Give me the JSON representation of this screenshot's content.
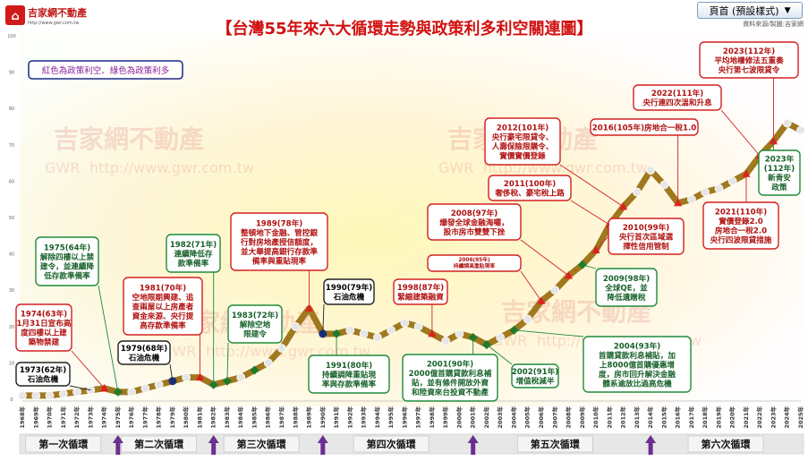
{
  "logo": {
    "name": "吉家網不動產",
    "url": "http://www.gwr.com.tw"
  },
  "title": "【台灣55年來六大循環走勢與政策利多利空關連圖】",
  "source_note": "資料來源/製圖:吉家網",
  "legend_note": "紅色為政策利空、綠色為政策利多",
  "watermark": {
    "brand": "吉家網不動產",
    "abbr": "GWR",
    "url": "http://www.gwr.com.tw"
  },
  "page_style_button": "頁首 (預設樣式)",
  "colors": {
    "line": "#a0781e",
    "red_marker": "#e02020",
    "green_marker": "#1f7a2a",
    "navy_marker": "#1c2f78",
    "point": "#e6e6e6",
    "red_border": "#d32020",
    "green_border": "#1f8a3a",
    "black_border": "#222222",
    "cycle_bar": "#e7e7e7",
    "arrow": "#6b2f8f"
  },
  "chart_data": {
    "type": "line",
    "ylim": [
      0,
      100
    ],
    "yticks": [
      0,
      10,
      20,
      30,
      40,
      50,
      60,
      70,
      80,
      90,
      100
    ],
    "x": [
      1968,
      1969,
      1970,
      1971,
      1972,
      1973,
      1974,
      1975,
      1976,
      1977,
      1978,
      1979,
      1980,
      1981,
      1982,
      1983,
      1984,
      1985,
      1986,
      1987,
      1988,
      1989,
      1990,
      1991,
      1992,
      1993,
      1994,
      1995,
      1996,
      1997,
      1998,
      1999,
      2000,
      2001,
      2002,
      2003,
      2004,
      2005,
      2006,
      2007,
      2008,
      2009,
      2010,
      2011,
      2012,
      2013,
      2014,
      2015,
      2016,
      2017,
      2018,
      2019,
      2020,
      2021,
      2022,
      2023,
      2024,
      2025
    ],
    "x_labels": [
      "1968年",
      "1969年",
      "1970年",
      "1971年",
      "1972年",
      "1973年",
      "1974年",
      "1975年",
      "1976年",
      "1977年",
      "1978年",
      "1979年",
      "1980年",
      "1981年",
      "1982年",
      "1983年",
      "1984年",
      "1985年",
      "1986年",
      "1987年",
      "1988年",
      "1989年",
      "1990年",
      "1991年",
      "1992年",
      "1993年",
      "1994年",
      "1995年",
      "1996年",
      "1997年",
      "1998年",
      "1999年",
      "2000年",
      "2001年",
      "2002年",
      "2003年",
      "2004年",
      "2005年",
      "2006年",
      "2007年",
      "2008年",
      "2009年",
      "2010年",
      "2011年",
      "2012年",
      "2013年",
      "2014年",
      "2015年",
      "2016年",
      "2017年",
      "2018年",
      "2019年",
      "2020年",
      "2021年",
      "2022年",
      "2023年",
      "2024年",
      "2025年"
    ],
    "values": [
      1,
      1,
      1,
      1.5,
      2,
      2.5,
      3,
      2,
      2,
      3,
      4,
      5,
      6,
      6,
      4,
      5,
      6,
      8,
      10,
      14,
      20,
      25,
      18,
      18,
      19,
      18,
      17,
      19,
      21,
      20,
      18,
      16,
      18,
      17,
      15,
      17,
      19,
      22,
      27,
      30,
      34,
      37,
      41,
      48,
      53,
      57,
      63,
      59,
      54,
      55,
      57,
      58,
      60,
      62,
      67,
      71,
      76,
      74
    ],
    "markers": [
      {
        "year": 1974,
        "kind": "red"
      },
      {
        "year": 1975,
        "kind": "green"
      },
      {
        "year": 1979,
        "kind": "navy"
      },
      {
        "year": 1981,
        "kind": "red"
      },
      {
        "year": 1982,
        "kind": "green"
      },
      {
        "year": 1983,
        "kind": "green"
      },
      {
        "year": 1985,
        "kind": "green"
      },
      {
        "year": 1989,
        "kind": "red"
      },
      {
        "year": 1990,
        "kind": "navy"
      },
      {
        "year": 1991,
        "kind": "green"
      },
      {
        "year": 1998,
        "kind": "red"
      },
      {
        "year": 2001,
        "kind": "green"
      },
      {
        "year": 2002,
        "kind": "green"
      },
      {
        "year": 2004,
        "kind": "green"
      },
      {
        "year": 2006,
        "kind": "red"
      },
      {
        "year": 2008,
        "kind": "red"
      },
      {
        "year": 2009,
        "kind": "green"
      },
      {
        "year": 2010,
        "kind": "red"
      },
      {
        "year": 2011,
        "kind": "red"
      },
      {
        "year": 2012,
        "kind": "red"
      },
      {
        "year": 2016,
        "kind": "red"
      },
      {
        "year": 2021,
        "kind": "red"
      },
      {
        "year": 2022,
        "kind": "red"
      },
      {
        "year": 2023,
        "kind": "red"
      }
    ]
  },
  "annotations": [
    {
      "id": "a1973",
      "year": 1973,
      "color": "black",
      "lines": [
        "1973(62年)",
        "石油危機"
      ]
    },
    {
      "id": "a1974",
      "year": 1974,
      "color": "red",
      "lines": [
        "1974(63年)",
        "1月31日宣布高",
        "度四樓以上建",
        "築物禁建"
      ]
    },
    {
      "id": "a1975",
      "year": 1975,
      "color": "green",
      "lines": [
        "1975(64年)",
        "解除四樓以上禁",
        "建令，並連續降",
        "低存款準備率"
      ]
    },
    {
      "id": "a1979",
      "year": 1979,
      "color": "black",
      "lines": [
        "1979(68年)",
        "石油危機"
      ]
    },
    {
      "id": "a1981",
      "year": 1981,
      "color": "red",
      "lines": [
        "1981(70年)",
        "空地限期興建、追",
        "查兩屋以上房產者",
        "資金來源、央行提",
        "高存款準備率"
      ]
    },
    {
      "id": "a1982",
      "year": 1982,
      "color": "green",
      "lines": [
        "1982(71年)",
        "連續降低存",
        "款準備率"
      ]
    },
    {
      "id": "a1983",
      "year": 1983,
      "color": "green",
      "lines": [
        "1983(72年)",
        "解除空地",
        "限建令"
      ]
    },
    {
      "id": "a1989",
      "year": 1989,
      "color": "red",
      "lines": [
        "1989(78年)",
        "整頓地下金融、管控銀",
        "行對房地產授信額度，",
        "並大舉提高銀行存款準",
        "備率與重貼現率"
      ]
    },
    {
      "id": "a1990",
      "year": 1990,
      "color": "black",
      "lines": [
        "1990(79年)",
        "石油危機"
      ]
    },
    {
      "id": "a1991",
      "year": 1991,
      "color": "green",
      "lines": [
        "1991(80年)",
        "持續調降重貼現",
        "率與存款準備率"
      ]
    },
    {
      "id": "a1998",
      "year": 1998,
      "color": "red",
      "lines": [
        "1998(87年)",
        "緊縮建築融資"
      ]
    },
    {
      "id": "a2001",
      "year": 2001,
      "color": "green",
      "lines": [
        "2001(90年)",
        "2000億首購貸款利息補",
        "貼，並有條件開放外資",
        "和陸資來台投資不動產"
      ]
    },
    {
      "id": "a2002",
      "year": 2002,
      "color": "green",
      "lines": [
        "2002(91年)",
        "增值稅減半"
      ]
    },
    {
      "id": "a2004",
      "year": 2004,
      "color": "green",
      "lines": [
        "2004(93年)",
        "首購貸款利息補貼，加",
        "上8000億首購優惠增",
        "度，房市回升解決金融",
        "體系逾放比過高危機"
      ]
    },
    {
      "id": "a2006",
      "year": 2006,
      "color": "red",
      "lines": [
        "2006(95年)",
        "持續調高重貼現率"
      ]
    },
    {
      "id": "a2008",
      "year": 2008,
      "color": "red",
      "lines": [
        "2008(97年)",
        "爆發全球金融海嘯，",
        "股市房市雙雙下挫"
      ]
    },
    {
      "id": "a2009",
      "year": 2009,
      "color": "green",
      "lines": [
        "2009(98年)",
        "全球QE，並",
        "降低遺贈稅"
      ]
    },
    {
      "id": "a2010",
      "year": 2010,
      "color": "red",
      "lines": [
        "2010(99年)",
        "央行首次區域選",
        "擇性信用管制"
      ]
    },
    {
      "id": "a2011",
      "year": 2011,
      "color": "red",
      "lines": [
        "2011(100年)",
        "奢侈稅、豪宅稅上路"
      ]
    },
    {
      "id": "a2012",
      "year": 2012,
      "color": "red",
      "lines": [
        "2012(101年)",
        "央行豪宅限貸令、",
        "人壽保險限購令、",
        "實價實價登錄"
      ]
    },
    {
      "id": "a2016",
      "year": 2016,
      "color": "red",
      "lines": [
        "2016(105年)房地合一稅1.0"
      ]
    },
    {
      "id": "a2021",
      "year": 2021,
      "color": "red",
      "lines": [
        "2021(110年)",
        "實價登錄2.0",
        "房地合一稅2.0",
        "央行四波限貸措施"
      ]
    },
    {
      "id": "a2022",
      "year": 2022,
      "color": "red",
      "lines": [
        "2022(111年)",
        "央行連四次溫和升息"
      ]
    },
    {
      "id": "a2023",
      "year": 2023,
      "color": "red",
      "lines": [
        "2023(112年)",
        "平均地權修法五重奏",
        "央行第七波限貸令"
      ]
    },
    {
      "id": "a2023g",
      "year": 2023,
      "color": "green",
      "lines": [
        "2023年",
        "(112年)",
        "新青安",
        "政策"
      ]
    }
  ],
  "cycles": [
    {
      "label": "第一次循環",
      "from": 1968,
      "to": 1974
    },
    {
      "label": "第二次循環",
      "from": 1975,
      "to": 1981
    },
    {
      "label": "第三次循環",
      "from": 1982,
      "to": 1989
    },
    {
      "label": "第四次循環",
      "from": 1990,
      "to": 2000
    },
    {
      "label": "第五次循環",
      "from": 2001,
      "to": 2013
    },
    {
      "label": "第六次循環",
      "from": 2014,
      "to": 2025
    }
  ],
  "cycle_arrows": [
    1975,
    1982,
    1990,
    2001,
    2014
  ]
}
